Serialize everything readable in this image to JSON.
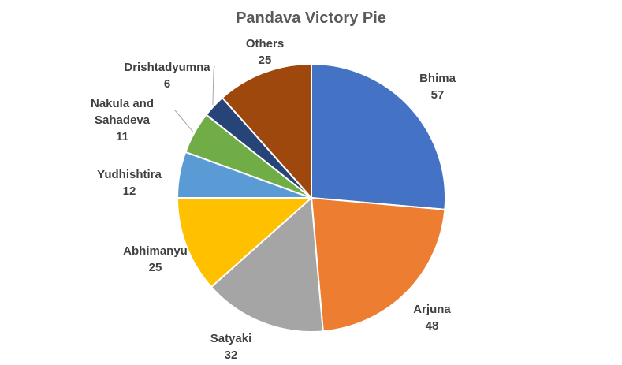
{
  "chart_data": {
    "type": "pie",
    "title": "Pandava Victory Pie",
    "slices": [
      {
        "label": "Bhima",
        "value": 57,
        "color": "#4472C4"
      },
      {
        "label": "Arjuna",
        "value": 48,
        "color": "#ED7D31"
      },
      {
        "label": "Satyaki",
        "value": 32,
        "color": "#A5A5A5"
      },
      {
        "label": "Abhimanyu",
        "value": 25,
        "color": "#FFC000"
      },
      {
        "label": "Yudhishtira",
        "value": 12,
        "color": "#5B9BD5"
      },
      {
        "label": "Nakula and Sahadeva",
        "value": 11,
        "color": "#70AD47"
      },
      {
        "label": "Drishtadyumna",
        "value": 6,
        "color": "#264478"
      },
      {
        "label": "Others",
        "value": 25,
        "color": "#9E480E"
      }
    ],
    "start_angle": "12 o'clock",
    "direction": "clockwise",
    "legend": "none",
    "data_labels": "category name and value, outside end"
  }
}
